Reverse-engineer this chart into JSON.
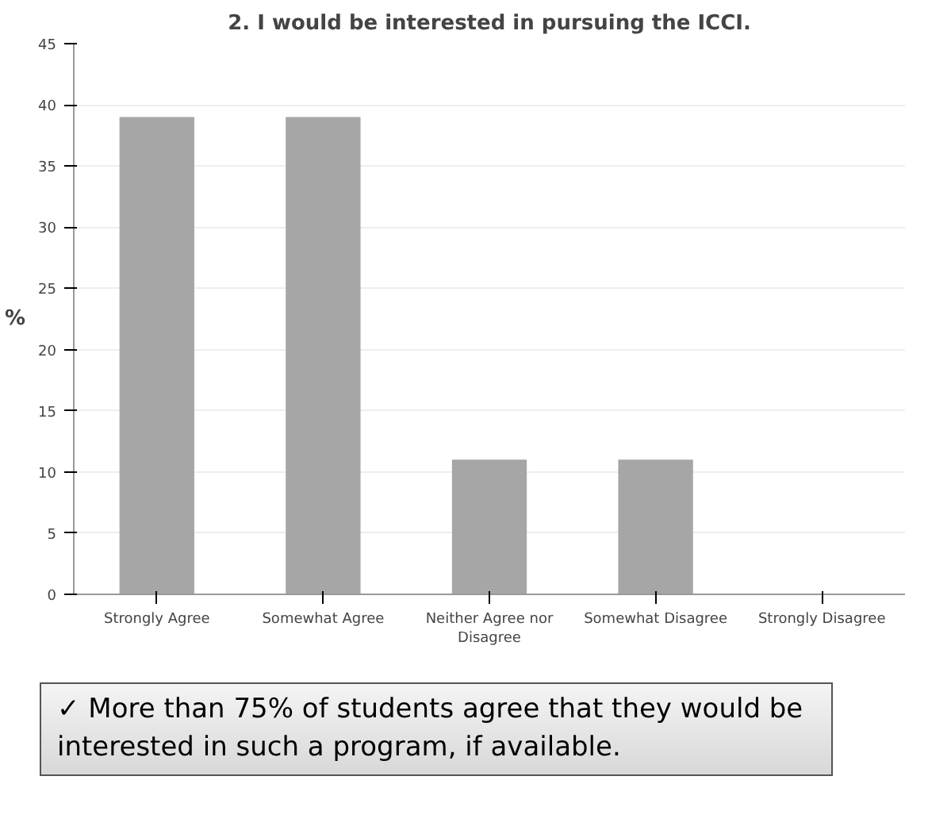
{
  "chart_data": {
    "type": "bar",
    "title": "2. I would be interested in pursuing the ICCI.",
    "ylabel": "%",
    "categories": [
      "Strongly Agree",
      "Somewhat Agree",
      "Neither Agree nor Disagree",
      "Somewhat Disagree",
      "Strongly Disagree"
    ],
    "values": [
      39,
      39,
      11,
      11,
      0
    ],
    "color": "#a6a6a6",
    "ylim": [
      0,
      45
    ],
    "yticks": [
      0,
      5,
      10,
      15,
      20,
      25,
      30,
      35,
      40,
      45
    ],
    "grid": "y",
    "annotations": [
      "✓  More than 75% of students agree that they would be interested in such a program, if available."
    ]
  }
}
